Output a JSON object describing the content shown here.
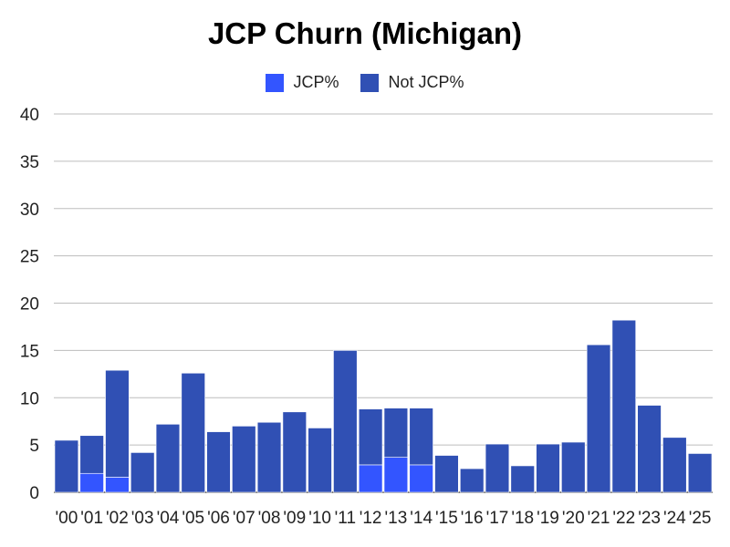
{
  "chart_data": {
    "type": "bar",
    "stacked": true,
    "title": "JCP Churn (Michigan)",
    "xlabel": "",
    "ylabel": "",
    "ylim": [
      0,
      40
    ],
    "yticks": [
      "0",
      "5",
      "10",
      "15",
      "20",
      "25",
      "30",
      "35",
      "40"
    ],
    "grid": true,
    "legend_position": "top",
    "categories": [
      "'00",
      "'01",
      "'02",
      "'03",
      "'04",
      "'05",
      "'06",
      "'07",
      "'08",
      "'09",
      "'10",
      "'11",
      "'12",
      "'13",
      "'14",
      "'15",
      "'16",
      "'17",
      "'18",
      "'19",
      "'20",
      "'21",
      "'22",
      "'23",
      "'24",
      "'25"
    ],
    "series": [
      {
        "name": "JCP%",
        "color": "#3355ff",
        "values": [
          0,
          2.0,
          1.6,
          0,
          0,
          0,
          0,
          0,
          0,
          0,
          0,
          0,
          2.9,
          3.7,
          2.9,
          0,
          0,
          0,
          0,
          0,
          0,
          0,
          0,
          0,
          0,
          0
        ]
      },
      {
        "name": "Not JCP%",
        "color": "#3050b4",
        "values": [
          5.5,
          4.0,
          11.3,
          4.2,
          7.2,
          12.6,
          6.4,
          7.0,
          7.4,
          8.5,
          6.8,
          15.0,
          5.9,
          5.2,
          6.0,
          3.9,
          2.5,
          5.1,
          2.8,
          5.1,
          5.3,
          15.6,
          18.2,
          9.2,
          5.8,
          4.1
        ]
      }
    ]
  }
}
